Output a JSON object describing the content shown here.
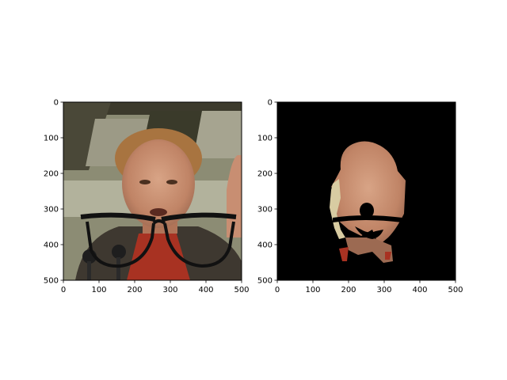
{
  "chart_data": [
    {
      "type": "image",
      "title": "",
      "xlabel": "",
      "ylabel": "",
      "xlim": [
        0,
        500
      ],
      "ylim": [
        500,
        0
      ],
      "xticks": [
        0,
        100,
        200,
        300,
        400,
        500
      ],
      "yticks": [
        0,
        100,
        200,
        300,
        400,
        500
      ],
      "xtick_labels": [
        "0",
        "100",
        "200",
        "300",
        "400",
        "500"
      ],
      "ytick_labels": [
        "0",
        "100",
        "200",
        "300",
        "400",
        "500"
      ],
      "content": "photo of a man with a black eyeglasses overlay",
      "colors": {
        "background": "#8a8a72",
        "skin": "#c89070",
        "glasses": "#111111",
        "shirt": "#a03020",
        "jacket": "#3a3630"
      }
    },
    {
      "type": "image",
      "title": "",
      "xlabel": "",
      "ylabel": "",
      "xlim": [
        0,
        500
      ],
      "ylim": [
        500,
        0
      ],
      "xticks": [
        0,
        100,
        200,
        300,
        400,
        500
      ],
      "yticks": [
        0,
        100,
        200,
        300,
        400,
        500
      ],
      "xtick_labels": [
        "0",
        "100",
        "200",
        "300",
        "400",
        "500"
      ],
      "ytick_labels": [
        "0",
        "100",
        "200",
        "300",
        "400",
        "500"
      ],
      "content": "face segmentation mask on black background",
      "colors": {
        "background": "#000000",
        "skin": "#c89070",
        "glasses": "#000000"
      }
    }
  ]
}
